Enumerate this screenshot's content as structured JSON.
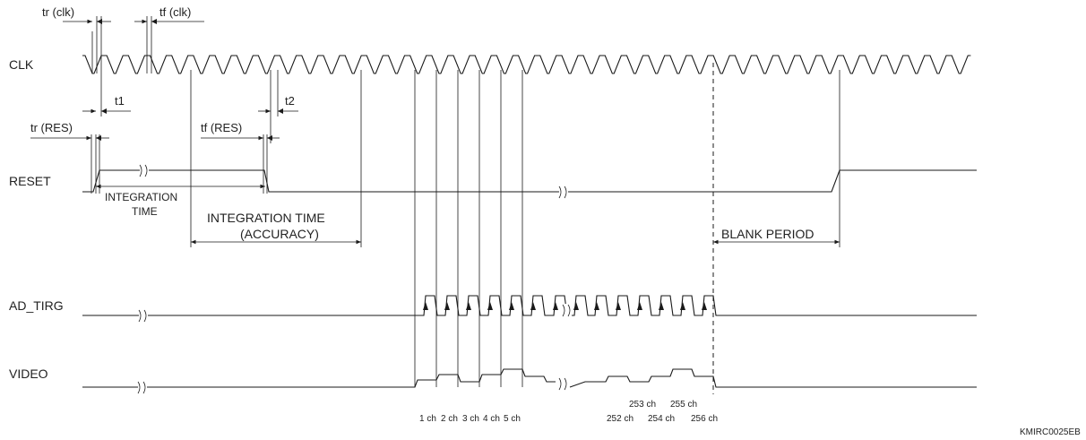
{
  "signals": {
    "clk": "CLK",
    "reset": "RESET",
    "ad_trig": "AD_TIRG",
    "video": "VIDEO"
  },
  "timing": {
    "tr_clk": "tr (clk)",
    "tf_clk": "tf (clk)",
    "t1": "t1",
    "t2": "t2",
    "tr_res": "tr (RES)",
    "tf_res": "tf (RES)"
  },
  "periods": {
    "integration_line1": "INTEGRATION",
    "integration_line2": "TIME",
    "accuracy_line1": "INTEGRATION TIME",
    "accuracy_line2": "(ACCURACY)",
    "blank": "BLANK PERIOD"
  },
  "channels": {
    "ch1": "1 ch",
    "ch2": "2 ch",
    "ch3": "3 ch",
    "ch4": "4 ch",
    "ch5": "5 ch",
    "ch252": "252 ch",
    "ch253": "253 ch",
    "ch254": "254 ch",
    "ch255": "255 ch",
    "ch256": "256 ch"
  },
  "figure_code": "KMIRC0025EB"
}
